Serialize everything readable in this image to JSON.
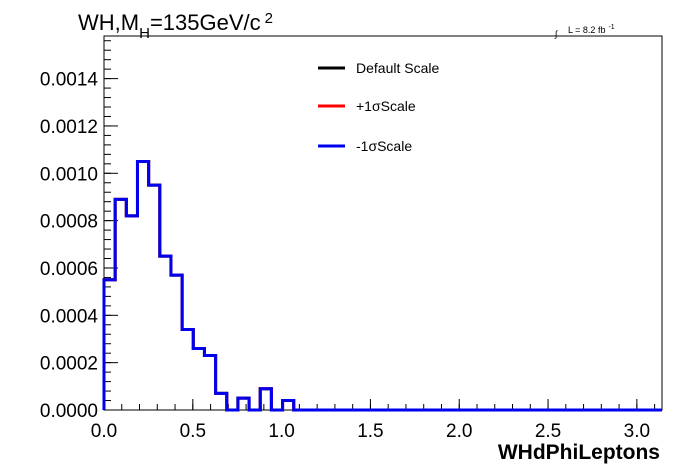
{
  "chart_data": {
    "type": "line",
    "drawstyle": "steps",
    "title_parts": {
      "main": "WH,M",
      "subscript": "H",
      "rest": "=135GeV/c",
      "superscript": "2"
    },
    "lumi": {
      "integral": "∫",
      "text": "L = 8.2 fb",
      "superscript": "-1"
    },
    "xlabel": "WHdPhiLeptons",
    "ylabel": "",
    "xlim": [
      0,
      3.1416
    ],
    "ylim": [
      0,
      0.00158
    ],
    "xticks": [
      0.0,
      0.5,
      1.0,
      1.5,
      2.0,
      2.5,
      3.0
    ],
    "xtick_labels": [
      "0.0",
      "0.5",
      "1.0",
      "1.5",
      "2.0",
      "2.5",
      "3.0"
    ],
    "yticks": [
      0.0,
      0.0002,
      0.0004,
      0.0006,
      0.0008,
      0.001,
      0.0012,
      0.0014
    ],
    "ytick_labels": [
      "0.0000",
      "0.0002",
      "0.0004",
      "0.0006",
      "0.0008",
      "0.0010",
      "0.0012",
      "0.0014"
    ],
    "bin_edges": [
      0.0,
      0.0628,
      0.1257,
      0.1885,
      0.2513,
      0.3142,
      0.377,
      0.4398,
      0.5027,
      0.5655,
      0.6283,
      0.6912,
      0.754,
      0.8168,
      0.8796,
      0.9425,
      1.0053,
      1.0681,
      1.131,
      3.1416
    ],
    "series": [
      {
        "name": "Default Scale",
        "color": "#000000",
        "values": [
          0.00055,
          0.00089,
          0.00082,
          0.00105,
          0.00095,
          0.00065,
          0.00057,
          0.00034,
          0.00026,
          0.00023,
          7e-05,
          0.0,
          5e-05,
          0.0,
          9e-05,
          0.0,
          4e-05,
          0.0,
          0.0
        ]
      },
      {
        "name": "+1σScale",
        "color": "#ff0000",
        "values": [
          0.00055,
          0.00089,
          0.00082,
          0.00105,
          0.00095,
          0.00065,
          0.00057,
          0.00034,
          0.00026,
          0.00023,
          7e-05,
          0.0,
          5e-05,
          0.0,
          9e-05,
          0.0,
          4e-05,
          0.0,
          0.0
        ]
      },
      {
        "name": "-1σScale",
        "color": "#0000ee",
        "values": [
          0.00055,
          0.00089,
          0.00082,
          0.00105,
          0.00095,
          0.00065,
          0.00057,
          0.00034,
          0.00026,
          0.00023,
          7e-05,
          0.0,
          5e-05,
          0.0,
          9e-05,
          0.0,
          4e-05,
          0.0,
          0.0
        ]
      }
    ],
    "legend_position": "top-center",
    "grid": false
  }
}
